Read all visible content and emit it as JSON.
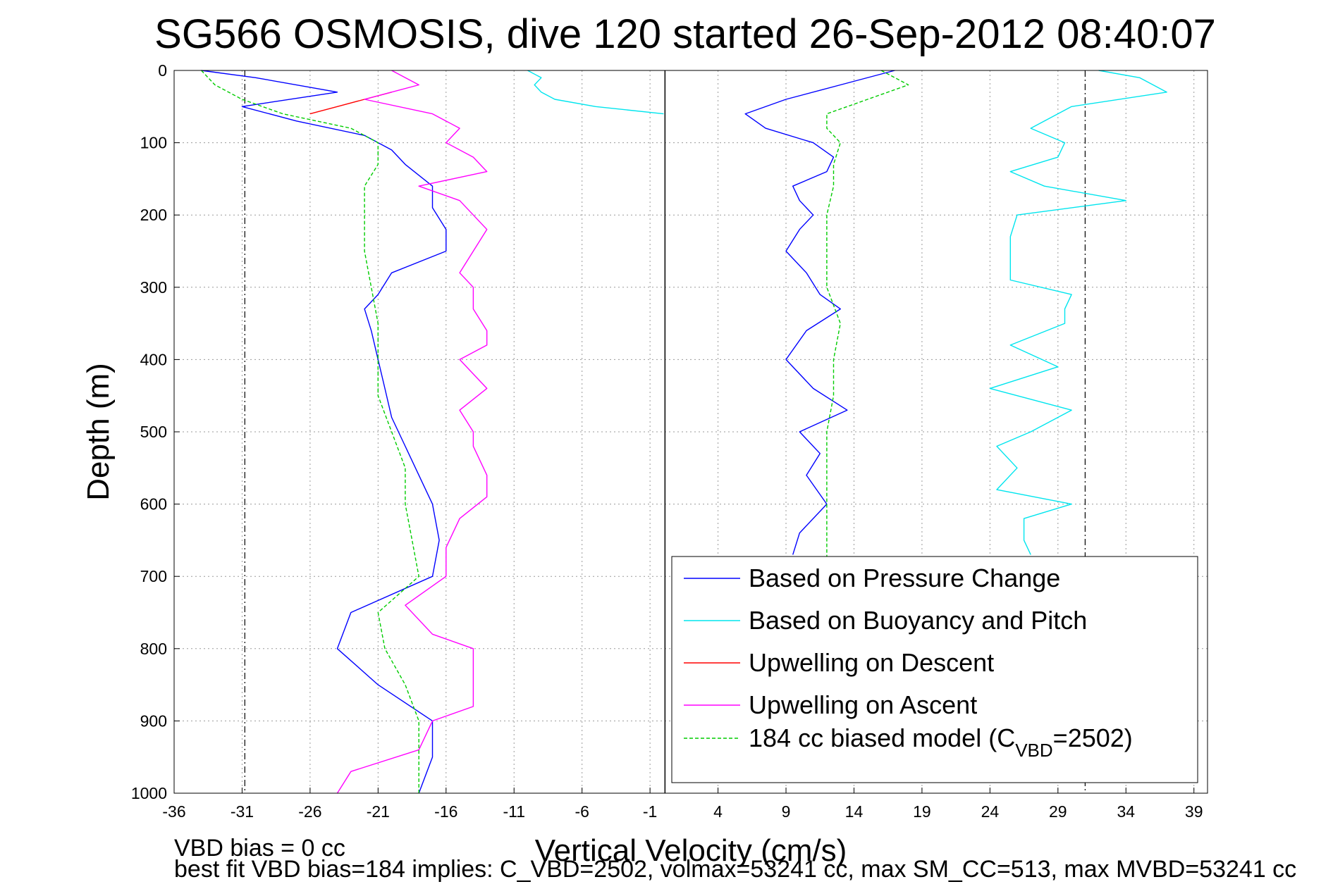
{
  "chart_data": {
    "type": "line",
    "title": "SG566 OSMOSIS, dive 120 started 26-Sep-2012 08:40:07",
    "xlabel": "Vertical Velocity (cm/s)",
    "ylabel": "Depth (m)",
    "xlim": [
      -36,
      40
    ],
    "ylim": [
      1000,
      0
    ],
    "y_reversed": true,
    "grid": true,
    "legend_position": "bottom-right",
    "x_ticks": [
      -36,
      -31,
      -26,
      -21,
      -16,
      -11,
      -6,
      -1,
      4,
      9,
      14,
      19,
      24,
      29,
      34,
      39
    ],
    "y_ticks": [
      0,
      100,
      200,
      300,
      400,
      500,
      600,
      700,
      800,
      900,
      1000
    ],
    "reference_lines": [
      {
        "axis": "x",
        "value": -30.8,
        "style": "dash-dot"
      },
      {
        "axis": "x",
        "value": 31,
        "style": "dash-dot"
      },
      {
        "axis": "x",
        "value": 0.1,
        "style": "solid"
      }
    ],
    "series": [
      {
        "name": "Based on Pressure Change",
        "color": "#0000ff",
        "style": "solid",
        "depth": [
          0,
          10,
          30,
          50,
          70,
          90,
          110,
          130,
          160,
          190,
          220,
          250,
          280,
          310,
          330,
          360,
          400,
          440,
          480,
          520,
          560,
          600,
          650,
          700,
          750,
          800,
          850,
          900,
          950,
          1000
        ],
        "values": [
          -34,
          -30,
          -24,
          -31,
          -27,
          -22,
          -20,
          -19,
          -17,
          -17,
          -16,
          -16,
          -20,
          -21,
          -22,
          -21.5,
          -21,
          -20.5,
          -20,
          -19,
          -18,
          -17,
          -16.5,
          -17,
          -23,
          -24,
          -21,
          -17,
          -17,
          -18
        ]
      },
      {
        "name": "Based on Pressure Change",
        "color": "#0000ff",
        "style": "solid",
        "depth": [
          0,
          20,
          40,
          60,
          80,
          100,
          120,
          140,
          160,
          180,
          200,
          220,
          250,
          280,
          310,
          330,
          360,
          400,
          440,
          470,
          500,
          530,
          560,
          600,
          640,
          670
        ],
        "values": [
          17,
          13,
          9,
          6,
          7.5,
          11,
          12.5,
          12,
          9.5,
          10,
          11,
          10,
          9,
          10.5,
          11.5,
          13,
          10.5,
          9,
          11,
          13.5,
          10,
          11.5,
          10.5,
          12,
          10,
          9.5
        ]
      },
      {
        "name": "Based on Buoyancy and Pitch",
        "color": "#00e5ee",
        "style": "solid",
        "depth": [
          0,
          10,
          30,
          50,
          80,
          100,
          120,
          140,
          160,
          180,
          200,
          230,
          260,
          290,
          310,
          330,
          350,
          380,
          410,
          440,
          470,
          500,
          520,
          550,
          580,
          600,
          620,
          650,
          670
        ],
        "values": [
          32,
          35,
          37,
          30,
          27,
          29.5,
          29,
          25.5,
          28,
          34,
          26,
          25.5,
          25.5,
          25.5,
          30,
          29.5,
          29.5,
          25.5,
          29,
          24,
          30,
          27,
          24.5,
          26,
          24.5,
          30,
          26.5,
          26.5,
          27
        ]
      },
      {
        "name": "Based on Buoyancy and Pitch",
        "color": "#00e5ee",
        "style": "solid",
        "depth": [
          0,
          10,
          20,
          30,
          40,
          50,
          60
        ],
        "values": [
          -10,
          -9,
          -9.5,
          -9,
          -8,
          -5,
          0
        ]
      },
      {
        "name": "Upwelling on Descent",
        "color": "#ff0000",
        "style": "solid",
        "depth": [
          30,
          40,
          50,
          60
        ],
        "values": [
          -20,
          -22,
          -24,
          -26
        ]
      },
      {
        "name": "Upwelling on Ascent",
        "color": "#ff00ff",
        "style": "solid",
        "depth": [
          0,
          20,
          40,
          60,
          80,
          100,
          120,
          140,
          160,
          180,
          200,
          220,
          250,
          280,
          300,
          330,
          360,
          380,
          400,
          420,
          440,
          470,
          500,
          520,
          560,
          590,
          620,
          660,
          700,
          740,
          780,
          800,
          840,
          880,
          900,
          940,
          970,
          1000
        ],
        "values": [
          -20,
          -18,
          -22,
          -17,
          -15,
          -16,
          -14,
          -13,
          -18,
          -15,
          -14,
          -13,
          -14,
          -15,
          -14,
          -14,
          -13,
          -13,
          -15,
          -14,
          -13,
          -15,
          -14,
          -14,
          -13,
          -13,
          -15,
          -16,
          -16,
          -19,
          -17,
          -14,
          -14,
          -14,
          -17,
          -18,
          -23,
          -24
        ]
      },
      {
        "name": "184 cc biased model (C_VBD=2502)",
        "color": "#00cc00",
        "style": "dashed",
        "depth": [
          0,
          20,
          40,
          60,
          80,
          100,
          130,
          160,
          200,
          250,
          300,
          350,
          400,
          450,
          500,
          550,
          600,
          650,
          700,
          750,
          800,
          850,
          900,
          950,
          1000
        ],
        "values": [
          -34,
          -33,
          -31,
          -28,
          -23,
          -21,
          -21,
          -22,
          -22,
          -22,
          -21.5,
          -21,
          -21,
          -21,
          -20,
          -19,
          -19,
          -18.5,
          -18,
          -21,
          -20.5,
          -19,
          -18,
          -18,
          -18
        ]
      },
      {
        "name": "184 cc biased model (C_VBD=2502)",
        "color": "#00cc00",
        "style": "dashed",
        "depth": [
          0,
          20,
          40,
          60,
          80,
          100,
          130,
          160,
          200,
          250,
          300,
          350,
          400,
          450,
          500,
          550,
          600,
          650,
          680
        ],
        "values": [
          16,
          18,
          15,
          12,
          12,
          13,
          12.5,
          12.5,
          12,
          12,
          12,
          13,
          12.5,
          12.5,
          12,
          12,
          12,
          12,
          12
        ]
      }
    ],
    "legend": [
      {
        "label": "Based on Pressure Change",
        "color": "#0000ff",
        "style": "solid"
      },
      {
        "label": "Based on Buoyancy and Pitch",
        "color": "#00e5ee",
        "style": "solid"
      },
      {
        "label": "Upwelling on Descent",
        "color": "#ff0000",
        "style": "solid"
      },
      {
        "label": "Upwelling on Ascent",
        "color": "#ff00ff",
        "style": "solid"
      },
      {
        "label_main": "184 cc biased model (C",
        "label_sub": "VBD",
        "label_tail": "=2502)",
        "color": "#00cc00",
        "style": "dashed"
      }
    ],
    "annotations": {
      "vbd_bias": "VBD bias = 0 cc",
      "best_fit": "best fit VBD bias=184 implies: C_VBD=2502, volmax=53241 cc, max SM_CC=513, max MVBD=53241 cc"
    }
  }
}
